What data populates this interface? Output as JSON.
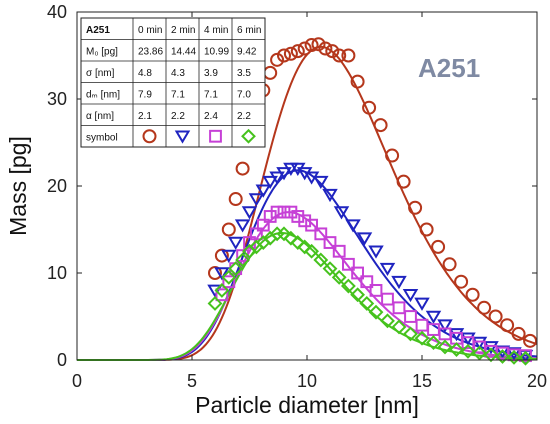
{
  "chart_data": {
    "type": "line",
    "title": "",
    "annotation": "A251",
    "xlabel": "Particle diameter [nm]",
    "ylabel": "Mass [pg]",
    "xlim": [
      0,
      20
    ],
    "ylim": [
      0,
      40
    ],
    "xticks": [
      "0",
      "5",
      "10",
      "15",
      "20"
    ],
    "yticks": [
      "0",
      "10",
      "20",
      "30",
      "40"
    ],
    "grid": false,
    "legend": "table-top-left",
    "table": {
      "header": [
        "A251",
        "0 min",
        "2 min",
        "4 min",
        "6 min"
      ],
      "rows": [
        {
          "label": "M₀ [pg]",
          "values": [
            "23.86",
            "14.44",
            "10.99",
            "9.42"
          ]
        },
        {
          "label": "σ [nm]",
          "values": [
            "4.8",
            "4.3",
            "3.9",
            "3.5"
          ]
        },
        {
          "label": "dₘ [nm]",
          "values": [
            "7.9",
            "7.1",
            "7.1",
            "7.0"
          ]
        },
        {
          "label": "α [nm]",
          "values": [
            "2.1",
            "2.2",
            "2.4",
            "2.2"
          ]
        }
      ],
      "symbol_label": "symbol"
    },
    "series": [
      {
        "name": "0 min",
        "color": "#b5371c",
        "marker": "circle",
        "x": [
          6.0,
          6.3,
          6.6,
          6.9,
          7.2,
          7.5,
          7.8,
          8.1,
          8.4,
          8.7,
          9.0,
          9.3,
          9.6,
          9.9,
          10.2,
          10.5,
          10.8,
          11.1,
          11.4,
          11.8,
          12.2,
          12.7,
          13.2,
          13.7,
          14.2,
          14.7,
          15.2,
          15.7,
          16.2,
          16.7,
          17.2,
          17.7,
          18.2,
          18.7,
          19.2,
          19.7
        ],
        "y": [
          10.0,
          12.0,
          15.0,
          18.5,
          22.0,
          25.5,
          28.5,
          31.0,
          33.0,
          34.5,
          35.0,
          35.2,
          35.5,
          35.8,
          36.2,
          36.3,
          35.8,
          35.5,
          35.0,
          35.0,
          32.0,
          29.0,
          27.0,
          23.5,
          20.5,
          17.5,
          15.0,
          13.0,
          11.0,
          9.0,
          7.5,
          6.0,
          5.0,
          4.0,
          3.0,
          2.2
        ]
      },
      {
        "name": "2 min",
        "color": "#1f24c0",
        "marker": "triangle",
        "x": [
          6.0,
          6.3,
          6.6,
          6.9,
          7.2,
          7.5,
          7.8,
          8.1,
          8.4,
          8.7,
          9.0,
          9.3,
          9.6,
          9.9,
          10.2,
          10.6,
          11.0,
          11.5,
          12.0,
          12.5,
          13.0,
          13.5,
          14.0,
          14.5,
          15.0,
          15.5,
          16.0,
          16.5,
          17.0,
          17.5,
          18.0,
          18.5,
          19.0,
          19.5
        ],
        "y": [
          8.0,
          10.0,
          12.0,
          13.5,
          15.5,
          17.0,
          18.5,
          19.5,
          20.5,
          21.0,
          21.5,
          22.0,
          22.0,
          21.5,
          21.0,
          20.5,
          19.0,
          17.0,
          15.5,
          14.0,
          12.5,
          10.5,
          9.0,
          7.5,
          6.5,
          5.0,
          4.0,
          3.0,
          2.5,
          2.0,
          1.5,
          1.0,
          0.8,
          0.5
        ]
      },
      {
        "name": "4 min",
        "color": "#c640d6",
        "marker": "square",
        "x": [
          6.3,
          6.6,
          6.9,
          7.2,
          7.5,
          7.8,
          8.1,
          8.4,
          8.7,
          9.0,
          9.3,
          9.6,
          9.9,
          10.2,
          10.6,
          11.0,
          11.4,
          11.8,
          12.2,
          12.6,
          13.0,
          13.5,
          14.0,
          14.5,
          15.0,
          15.5,
          16.0,
          16.5,
          17.0,
          17.5,
          18.0,
          18.5,
          19.0,
          19.5
        ],
        "y": [
          7.5,
          9.0,
          10.5,
          12.0,
          13.5,
          14.5,
          15.5,
          16.5,
          17.0,
          17.0,
          17.0,
          16.5,
          16.0,
          15.5,
          14.5,
          13.5,
          12.5,
          11.0,
          10.0,
          9.0,
          8.0,
          7.0,
          6.0,
          5.0,
          4.0,
          3.5,
          3.0,
          2.5,
          2.0,
          1.5,
          1.0,
          0.8,
          0.6,
          0.5
        ]
      },
      {
        "name": "6 min",
        "color": "#46c21d",
        "marker": "diamond",
        "x": [
          6.0,
          6.3,
          6.6,
          6.9,
          7.2,
          7.5,
          7.8,
          8.1,
          8.4,
          8.7,
          9.0,
          9.3,
          9.6,
          9.9,
          10.2,
          10.6,
          11.0,
          11.4,
          11.8,
          12.2,
          12.6,
          13.0,
          13.5,
          14.0,
          14.5,
          15.0,
          15.5,
          16.0,
          16.5,
          17.0,
          17.5,
          18.0,
          18.5,
          19.0,
          19.5
        ],
        "y": [
          6.5,
          8.0,
          9.5,
          10.5,
          11.5,
          12.5,
          13.0,
          13.5,
          14.0,
          14.5,
          14.5,
          14.0,
          13.5,
          13.0,
          12.5,
          11.5,
          10.5,
          9.5,
          8.5,
          7.5,
          6.5,
          5.5,
          4.5,
          3.8,
          3.0,
          2.5,
          2.0,
          1.5,
          1.2,
          1.0,
          0.8,
          0.6,
          0.4,
          0.3,
          0.2
        ]
      }
    ],
    "fit_curves": [
      {
        "series": "0 min",
        "color": "#b5371c",
        "peak_x": 10.6,
        "peak_y": 36.0
      },
      {
        "series": "2 min",
        "color": "#1f24c0",
        "peak_x": 9.6,
        "peak_y": 21.8
      },
      {
        "series": "4 min",
        "color": "#c640d6",
        "peak_x": 9.2,
        "peak_y": 17.0
      },
      {
        "series": "6 min",
        "color": "#46c21d",
        "peak_x": 8.9,
        "peak_y": 14.6
      }
    ]
  }
}
